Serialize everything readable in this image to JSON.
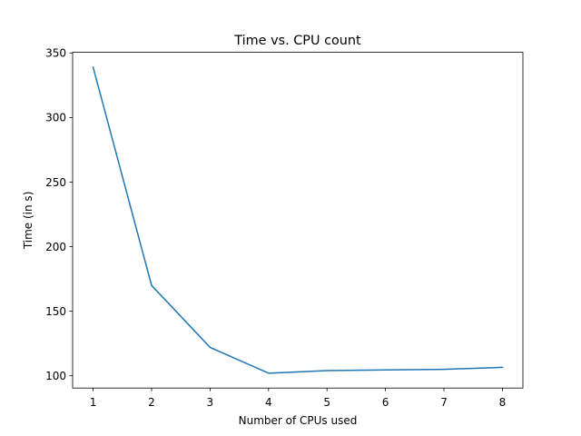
{
  "chart_data": {
    "type": "line",
    "title": "Time vs. CPU count",
    "xlabel": "Number of CPUs used",
    "ylabel": "Time (in s)",
    "xlim": [
      0.65,
      8.35
    ],
    "ylim": [
      90.5,
      350.5
    ],
    "xticks": [
      1,
      2,
      3,
      4,
      5,
      6,
      7,
      8
    ],
    "yticks": [
      100,
      150,
      200,
      250,
      300,
      350
    ],
    "grid": false,
    "series": [
      {
        "color": "#1f77b4",
        "points": [
          {
            "x": 1,
            "y": 339
          },
          {
            "x": 2,
            "y": 170
          },
          {
            "x": 3,
            "y": 122
          },
          {
            "x": 4,
            "y": 102
          },
          {
            "x": 5,
            "y": 104
          },
          {
            "x": 6,
            "y": 104.5
          },
          {
            "x": 7,
            "y": 105
          },
          {
            "x": 8,
            "y": 106.5
          }
        ]
      }
    ]
  }
}
